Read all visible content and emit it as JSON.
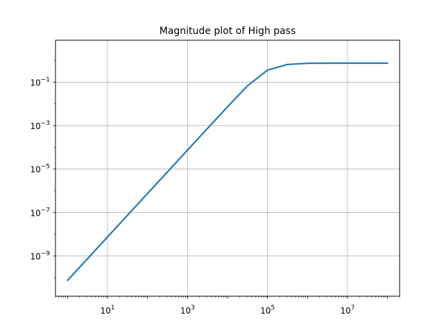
{
  "chart_data": {
    "type": "line",
    "title": "Magnitude plot of High pass",
    "xlabel": "",
    "ylabel": "",
    "xscale": "log",
    "yscale": "log",
    "xlim": [
      0.5,
      200000000
    ],
    "ylim": [
      1.4e-11,
      8.5
    ],
    "grid": true,
    "x_ticks": [
      {
        "value": 10,
        "base": "10",
        "exp": "1"
      },
      {
        "value": 1000,
        "base": "10",
        "exp": "3"
      },
      {
        "value": 100000,
        "base": "10",
        "exp": "5"
      },
      {
        "value": 10000000,
        "base": "10",
        "exp": "7"
      }
    ],
    "y_ticks": [
      {
        "value": 1e-09,
        "base": "10",
        "exp": "−9"
      },
      {
        "value": 1e-07,
        "base": "10",
        "exp": "−7"
      },
      {
        "value": 1e-05,
        "base": "10",
        "exp": "−5"
      },
      {
        "value": 0.001,
        "base": "10",
        "exp": "−3"
      },
      {
        "value": 0.1,
        "base": "10",
        "exp": "−1"
      }
    ],
    "series": [
      {
        "color": "#1f77b4",
        "x": [
          1,
          10,
          100,
          1000,
          10000,
          31623,
          100000,
          316228,
          1000000,
          10000000,
          100000000
        ],
        "y": [
          7.5e-11,
          7.5e-09,
          7.5e-07,
          7.5e-05,
          0.0074,
          0.068,
          0.36,
          0.65,
          0.74,
          0.75,
          0.75
        ]
      }
    ]
  }
}
